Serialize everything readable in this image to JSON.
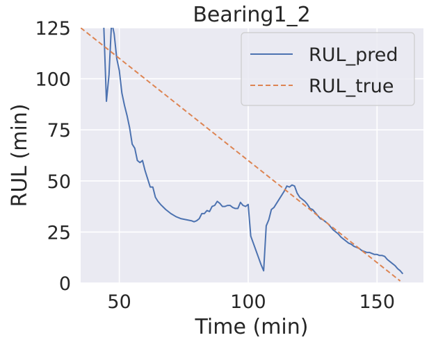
{
  "chart_data": {
    "type": "line",
    "title": "Bearing1_2",
    "xlabel": "Time (min)",
    "ylabel": "RUL (min)",
    "xlim": [
      35,
      168
    ],
    "ylim": [
      0,
      125
    ],
    "xticks": [
      50,
      100,
      150
    ],
    "yticks": [
      0,
      25,
      50,
      75,
      100,
      125
    ],
    "grid": true,
    "legend_position": "top-right",
    "colors": {
      "background": "#eaeaf2",
      "grid": "#ffffff",
      "pred": "#4c72b0",
      "true": "#dd8452"
    },
    "series": [
      {
        "name": "RUL_pred",
        "style": "solid",
        "x": [
          44,
          45,
          46,
          47,
          48,
          49,
          50,
          51,
          52,
          53,
          54,
          55,
          56,
          57,
          58,
          59,
          60,
          61,
          62,
          63,
          64,
          65,
          66,
          68,
          70,
          72,
          74,
          76,
          78,
          79,
          80,
          81,
          82,
          83,
          84,
          85,
          86,
          87,
          88,
          89,
          90,
          91,
          92,
          93,
          94,
          95,
          96,
          97,
          98,
          99,
          100,
          101,
          102,
          103,
          104,
          105,
          106,
          107,
          108,
          109,
          110,
          111,
          112,
          113,
          114,
          115,
          116,
          117,
          118,
          119,
          120,
          121,
          122,
          123,
          124,
          125,
          126,
          127,
          128,
          129,
          130,
          131,
          132,
          133,
          134,
          135,
          136,
          137,
          138,
          139,
          140,
          141,
          142,
          143,
          144,
          145,
          146,
          147,
          148,
          149,
          150,
          151,
          152,
          153,
          154,
          155,
          156,
          157,
          158,
          159,
          160
        ],
        "values": [
          125,
          89,
          102,
          128,
          122,
          110,
          104,
          93,
          87,
          82,
          76,
          68,
          66,
          60,
          59,
          60,
          55,
          51,
          47,
          47,
          42,
          40,
          38.5,
          36,
          34,
          32.5,
          31.5,
          31,
          30.5,
          30,
          30.5,
          31.5,
          34,
          34,
          35.5,
          35,
          37.5,
          38,
          40,
          39,
          37.5,
          37.5,
          38,
          38,
          37,
          36.5,
          36.5,
          39.5,
          38,
          37.5,
          38.5,
          23,
          19.5,
          16,
          12.5,
          9,
          6,
          28,
          31,
          36,
          37,
          39,
          41,
          43,
          45,
          47.5,
          47,
          48,
          47.5,
          44,
          42,
          41,
          40,
          38.5,
          36.5,
          36,
          34.5,
          33,
          31.5,
          31,
          30,
          29,
          27.5,
          26,
          25,
          24,
          22.5,
          21.5,
          20.5,
          19.5,
          19,
          18,
          17.5,
          17,
          16,
          15.5,
          15,
          15,
          14.5,
          14,
          14,
          13.5,
          13.5,
          13,
          11.5,
          10.5,
          9.5,
          8.5,
          7,
          6,
          4.5
        ]
      },
      {
        "name": "RUL_true",
        "style": "dashed",
        "x": [
          35,
          159
        ],
        "values": [
          125,
          1
        ]
      }
    ]
  }
}
